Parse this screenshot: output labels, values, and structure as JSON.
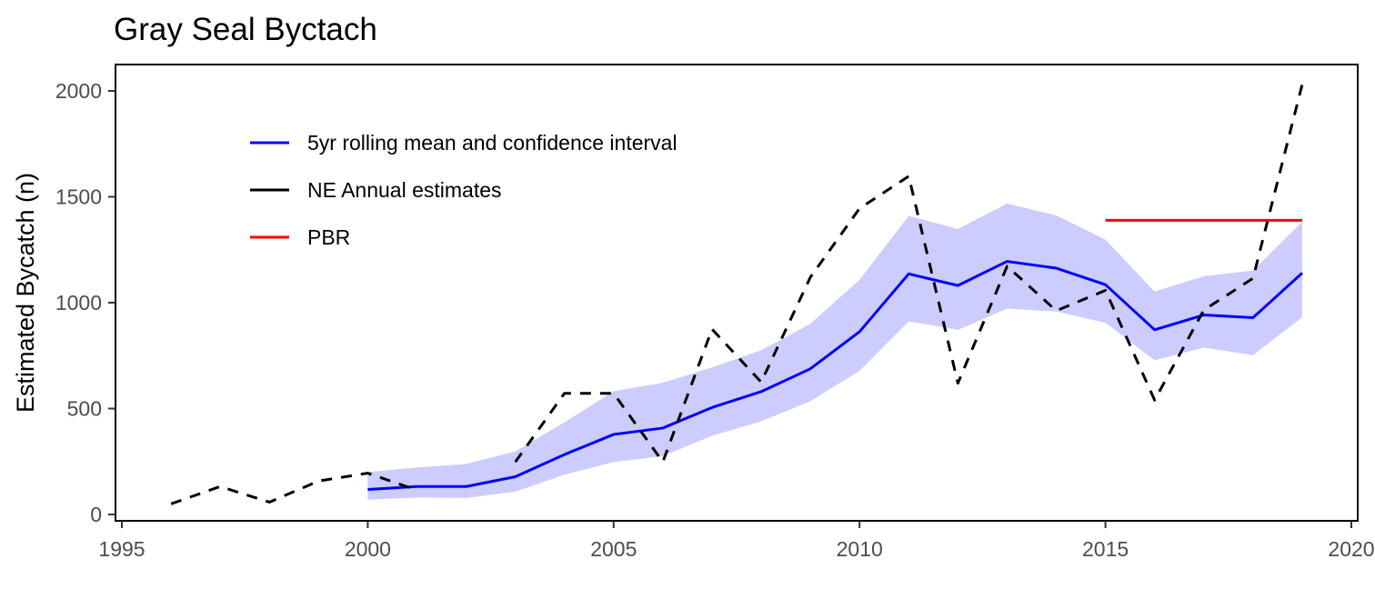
{
  "chart_data": {
    "type": "line",
    "title": "Gray Seal Byctach",
    "xlabel": "",
    "ylabel": "Estimated Bycatch (n)",
    "xlim": [
      1995,
      2020
    ],
    "ylim": [
      0,
      2000
    ],
    "x_ticks": [
      1995,
      2000,
      2005,
      2010,
      2015,
      2020
    ],
    "y_ticks": [
      0,
      500,
      1000,
      1500,
      2000
    ],
    "grid": false,
    "legend_position": "top-left",
    "series": [
      {
        "name": "5yr rolling mean and confidence interval",
        "kind": "line-with-ribbon",
        "color": "#0000ff",
        "ribbon_color": "#ccccff",
        "x": [
          2000,
          2001,
          2002,
          2003,
          2004,
          2005,
          2006,
          2007,
          2008,
          2009,
          2010,
          2011,
          2012,
          2013,
          2014,
          2015,
          2016,
          2017,
          2018,
          2019
        ],
        "values": [
          118,
          132,
          132,
          178,
          283,
          378,
          408,
          505,
          580,
          688,
          863,
          1136,
          1081,
          1195,
          1163,
          1085,
          872,
          942,
          929,
          1140
        ],
        "lower": [
          70,
          80,
          78,
          108,
          188,
          248,
          275,
          372,
          440,
          535,
          678,
          912,
          872,
          972,
          958,
          905,
          728,
          788,
          752,
          932
        ],
        "upper": [
          200,
          222,
          238,
          298,
          435,
          582,
          622,
          695,
          775,
          900,
          1108,
          1410,
          1348,
          1468,
          1412,
          1298,
          1052,
          1125,
          1152,
          1382
        ]
      },
      {
        "name": "NE Annual estimates",
        "kind": "dashed-line",
        "color": "#000000",
        "x": [
          1996,
          1997,
          1998,
          1999,
          2000,
          2001,
          2002,
          2003,
          2004,
          2005,
          2006,
          2007,
          2008,
          2009,
          2010,
          2011,
          2012,
          2013,
          2014,
          2015,
          2016,
          2017,
          2018,
          2019
        ],
        "values": [
          50,
          132,
          58,
          158,
          195,
          115,
          null,
          248,
          572,
          572,
          248,
          875,
          625,
          1120,
          1445,
          1597,
          620,
          1172,
          962,
          1058,
          540,
          965,
          1115,
          2030
        ]
      },
      {
        "name": "PBR",
        "kind": "line",
        "color": "#ff0000",
        "x": [
          2015,
          2019
        ],
        "values": [
          1389,
          1389
        ]
      }
    ]
  }
}
